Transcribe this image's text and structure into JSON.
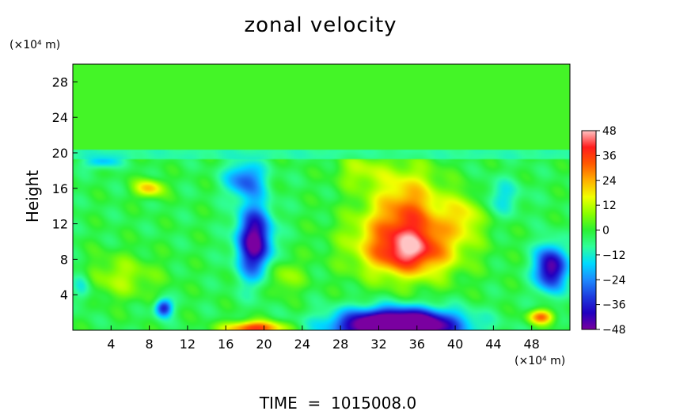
{
  "chart_data": {
    "type": "heatmap",
    "title": "zonal velocity",
    "ylabel": "Height",
    "x_unit_label": "(×10⁴ m)",
    "y_unit_label": "(×10⁴ m)",
    "footer": "TIME  =  1015008.0",
    "xlim": [
      0,
      52
    ],
    "ylim": [
      0,
      30
    ],
    "x_ticks": [
      4,
      8,
      12,
      16,
      20,
      24,
      28,
      32,
      36,
      40,
      44,
      48
    ],
    "y_ticks": [
      4,
      8,
      12,
      16,
      20,
      24,
      28
    ],
    "colorbar": {
      "min": -48,
      "max": 48,
      "ticks": [
        48,
        36,
        24,
        12,
        0,
        -12,
        -24,
        -36,
        -48
      ],
      "colors": [
        [
          -48,
          "#7a00a0"
        ],
        [
          -40,
          "#2200c0"
        ],
        [
          -32,
          "#1d3ee0"
        ],
        [
          -24,
          "#1e8cff"
        ],
        [
          -16,
          "#00dcff"
        ],
        [
          -8,
          "#30ff9a"
        ],
        [
          0,
          "#2cf234"
        ],
        [
          8,
          "#8cff00"
        ],
        [
          16,
          "#f2ff00"
        ],
        [
          24,
          "#ffb000"
        ],
        [
          32,
          "#ff5a00"
        ],
        [
          40,
          "#ff1e1e"
        ],
        [
          48,
          "#ffc4c4"
        ]
      ]
    },
    "background_value": -2,
    "field_features": [
      {
        "x": 26,
        "y": 25,
        "sx": 60,
        "sy": 5,
        "value": 4
      },
      {
        "x": 35,
        "y": 10,
        "sx": 5.5,
        "sy": 4,
        "value": 36
      },
      {
        "x": 35,
        "y": 8.5,
        "sx": 3.5,
        "sy": 2,
        "value": 16
      },
      {
        "x": 35,
        "y": 15,
        "sx": 3.5,
        "sy": 4,
        "value": 20
      },
      {
        "x": 30,
        "y": 18,
        "sx": 2.5,
        "sy": 2,
        "value": 12
      },
      {
        "x": 41,
        "y": 13,
        "sx": 1.8,
        "sy": 2.5,
        "value": 14
      },
      {
        "x": 34,
        "y": 0.5,
        "sx": 6,
        "sy": 1.8,
        "value": -80
      },
      {
        "x": 19,
        "y": 10,
        "sx": 1.8,
        "sy": 4,
        "value": -48
      },
      {
        "x": 18,
        "y": 17,
        "sx": 2,
        "sy": 2,
        "value": -26
      },
      {
        "x": 50,
        "y": 7,
        "sx": 1.6,
        "sy": 2.5,
        "value": -46
      },
      {
        "x": 9.5,
        "y": 2.5,
        "sx": 0.9,
        "sy": 1,
        "value": -36
      },
      {
        "x": 3,
        "y": 19,
        "sx": 1.8,
        "sy": 0.8,
        "value": -18
      },
      {
        "x": 8,
        "y": 16,
        "sx": 1.5,
        "sy": 1,
        "value": 24
      },
      {
        "x": 19,
        "y": 0.2,
        "sx": 3,
        "sy": 0.8,
        "value": 40
      },
      {
        "x": 49,
        "y": 1.5,
        "sx": 1.3,
        "sy": 0.8,
        "value": 32
      },
      {
        "x": 5,
        "y": 6,
        "sx": 4,
        "sy": 2.5,
        "value": 12
      },
      {
        "x": 22,
        "y": 6,
        "sx": 2,
        "sy": 2,
        "value": 12
      },
      {
        "x": 45,
        "y": 15,
        "sx": 2,
        "sy": 2,
        "value": -12
      },
      {
        "x": 1,
        "y": 5,
        "sx": 1,
        "sy": 2,
        "value": -14
      }
    ]
  }
}
